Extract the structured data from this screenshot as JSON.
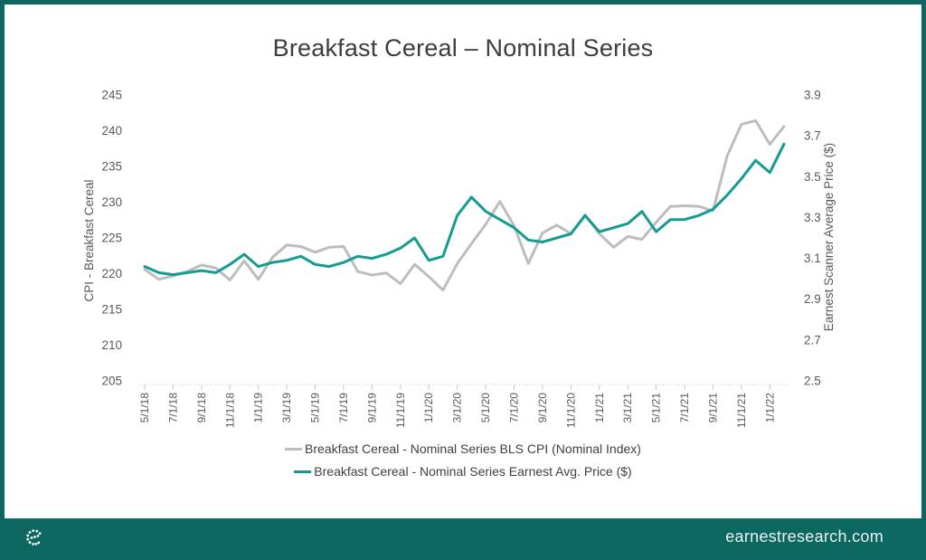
{
  "header": {
    "title": "Breakfast Cereal – Nominal Series"
  },
  "footer": {
    "site": "earnestresearch.com",
    "logo_icon": "earnest-dotted-e-logo"
  },
  "colors": {
    "frame_teal": "#0C6761",
    "cpi_line": "#BDBDBD",
    "price_line": "#149C92",
    "axis_text": "#595959",
    "axis_line": "#C9C9C9",
    "title_text": "#3D3D3D",
    "legend_text": "#404040",
    "footer_text": "#EDF3F2"
  },
  "chart_data": {
    "type": "line",
    "title": "Breakfast Cereal – Nominal Series",
    "legend_position": "bottom",
    "grid": "off",
    "categories": [
      "5/1/18",
      "6/1/18",
      "7/1/18",
      "8/1/18",
      "9/1/18",
      "10/1/18",
      "11/1/18",
      "12/1/18",
      "1/1/19",
      "2/1/19",
      "3/1/19",
      "4/1/19",
      "5/1/19",
      "6/1/19",
      "7/1/19",
      "8/1/19",
      "9/1/19",
      "10/1/19",
      "11/1/19",
      "12/1/19",
      "1/1/20",
      "2/1/20",
      "3/1/20",
      "4/1/20",
      "5/1/20",
      "6/1/20",
      "7/1/20",
      "8/1/20",
      "9/1/20",
      "10/1/20",
      "11/1/20",
      "12/1/20",
      "1/1/21",
      "2/1/21",
      "3/1/21",
      "4/1/21",
      "5/1/21",
      "6/1/21",
      "7/1/21",
      "8/1/21",
      "9/1/21",
      "10/1/21",
      "11/1/21",
      "12/1/21",
      "1/1/22",
      "2/1/22"
    ],
    "x_tick_labels": [
      "5/1/18",
      "7/1/18",
      "9/1/18",
      "11/1/18",
      "1/1/19",
      "3/1/19",
      "5/1/19",
      "7/1/19",
      "9/1/19",
      "11/1/19",
      "1/1/20",
      "3/1/20",
      "5/1/20",
      "7/1/20",
      "9/1/20",
      "11/1/20",
      "1/1/21",
      "3/1/21",
      "5/1/21",
      "7/1/21",
      "9/1/21",
      "11/1/21",
      "1/1/22"
    ],
    "left_axis": {
      "label": "CPI - Breakfast Cereal",
      "min": 205,
      "max": 245,
      "step": 5,
      "ticks": [
        "245",
        "240",
        "235",
        "230",
        "225",
        "220",
        "215",
        "210",
        "205"
      ]
    },
    "right_axis": {
      "label": "Earnest Scanner Average Price ($)",
      "min": 2.5,
      "max": 3.9,
      "step": 0.2,
      "ticks": [
        "3.9",
        "3.7",
        "3.5",
        "3.3",
        "3.1",
        "2.9",
        "2.7",
        "2.5"
      ]
    },
    "series": [
      {
        "name": "Breakfast Cereal - Nominal Series BLS CPI (Nominal Index)",
        "axis": "left",
        "color_key": "cpi_line",
        "values": [
          220.6,
          219.2,
          219.7,
          220.3,
          221.2,
          220.8,
          219.1,
          221.8,
          219.2,
          222.3,
          224.0,
          223.8,
          223.0,
          223.7,
          223.8,
          220.3,
          219.8,
          220.1,
          218.6,
          221.3,
          219.6,
          217.7,
          221.4,
          224.2,
          226.9,
          230.1,
          226.7,
          221.4,
          225.7,
          226.8,
          225.6,
          228.2,
          225.6,
          223.7,
          225.2,
          224.8,
          227.2,
          229.4,
          229.5,
          229.4,
          228.8,
          236.5,
          240.9,
          241.4,
          238.1,
          240.6
        ]
      },
      {
        "name": "Breakfast Cereal - Nominal Series Earnest Avg. Price ($)",
        "axis": "right",
        "color_key": "price_line",
        "values": [
          3.06,
          3.03,
          3.02,
          3.03,
          3.04,
          3.03,
          3.07,
          3.12,
          3.06,
          3.08,
          3.09,
          3.11,
          3.07,
          3.06,
          3.08,
          3.11,
          3.1,
          3.12,
          3.15,
          3.2,
          3.09,
          3.11,
          3.31,
          3.4,
          3.33,
          3.29,
          3.25,
          3.19,
          3.18,
          3.2,
          3.22,
          3.31,
          3.23,
          3.25,
          3.27,
          3.33,
          3.23,
          3.29,
          3.29,
          3.31,
          3.34,
          3.41,
          3.49,
          3.58,
          3.52,
          3.66
        ]
      }
    ]
  }
}
